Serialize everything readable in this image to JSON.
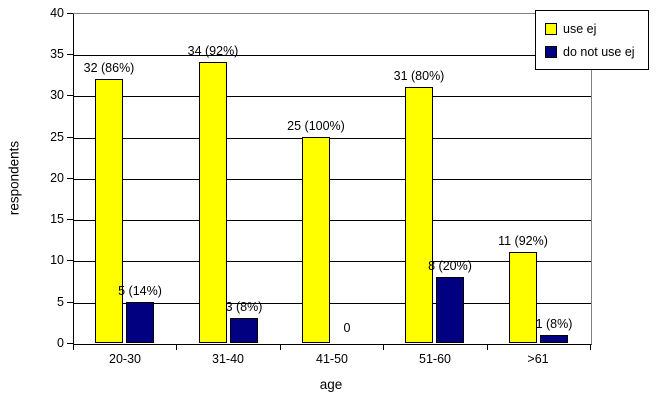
{
  "chart_data": {
    "type": "bar",
    "title": "",
    "xlabel": "age",
    "ylabel": "respondents",
    "categories": [
      "20-30",
      "31-40",
      "41-50",
      "51-60",
      ">61"
    ],
    "series": [
      {
        "name": "use ej",
        "color": "#FFFF00",
        "values": [
          32,
          34,
          25,
          31,
          11
        ],
        "labels": [
          "32 (86%)",
          "34 (92%)",
          "25 (100%)",
          "31 (80%)",
          "11 (92%)"
        ]
      },
      {
        "name": "do not use ej",
        "color": "#000080",
        "values": [
          5,
          3,
          0,
          8,
          1
        ],
        "labels": [
          "5 (14%)",
          "3 (8%)",
          "0",
          "8 (20%)",
          "1 (8%)"
        ]
      }
    ],
    "ylim": [
      0,
      40
    ],
    "ytick_step": 5,
    "yticks": [
      0,
      5,
      10,
      15,
      20,
      25,
      30,
      35,
      40
    ],
    "grid": true,
    "legend_position": "top-right",
    "colors": {
      "axis": "#000000",
      "gridline": "#000000",
      "plot_border": "#808080",
      "background": "#FFFFFF",
      "text": "#000000"
    }
  }
}
